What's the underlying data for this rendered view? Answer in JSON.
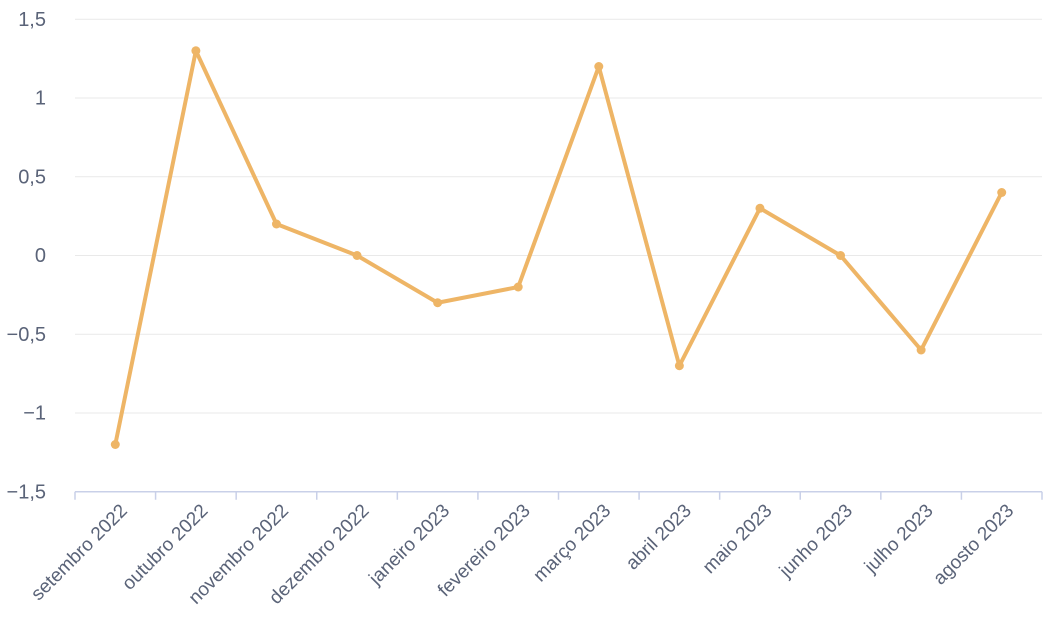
{
  "chart_data": {
    "type": "line",
    "title": "",
    "xlabel": "",
    "ylabel": "",
    "categories": [
      "setembro 2022",
      "outubro 2022",
      "novembro 2022",
      "dezembro 2022",
      "janeiro 2023",
      "fevereiro 2023",
      "março 2023",
      "abril 2023",
      "maio 2023",
      "junho 2023",
      "julho 2023",
      "agosto 2023"
    ],
    "values": [
      -1.2,
      1.3,
      0.2,
      0,
      -0.3,
      -0.2,
      1.2,
      -0.7,
      0.3,
      0,
      -0.6,
      0.4
    ],
    "ylim": [
      -1.5,
      1.5
    ],
    "y_tick_values": [
      1.5,
      1,
      0.5,
      0,
      -0.5,
      -1,
      -1.5
    ],
    "y_tick_labels": [
      "1,5",
      "1",
      "0,5",
      "0",
      "−0,5",
      "−1",
      "−1,5"
    ],
    "grid": true,
    "legend": false,
    "legend_position": "none",
    "colors": {
      "line": "#eeb566",
      "marker": "#eeb566",
      "grid": "#e9e9e9",
      "axis": "#c9d0e8",
      "label": "#5a6378"
    }
  }
}
